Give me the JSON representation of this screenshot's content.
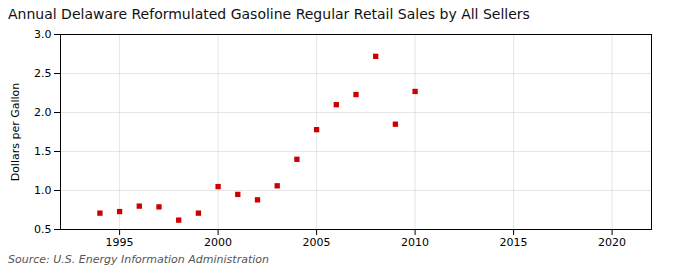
{
  "chart_data": {
    "type": "scatter",
    "title": "Annual Delaware Reformulated Gasoline Regular Retail Sales by All Sellers",
    "ylabel": "Dollars per Gallon",
    "source": "Source: U.S. Energy Information Administration",
    "x": [
      1994,
      1995,
      1996,
      1997,
      1998,
      1999,
      2000,
      2001,
      2002,
      2003,
      2004,
      2005,
      2006,
      2007,
      2008,
      2009,
      2010
    ],
    "values": [
      0.71,
      0.73,
      0.8,
      0.79,
      0.62,
      0.71,
      1.05,
      0.95,
      0.88,
      1.06,
      1.4,
      1.78,
      2.1,
      2.23,
      2.72,
      1.85,
      2.27
    ],
    "color": "#cc0000",
    "marker": "square",
    "xlim": [
      1992,
      2022
    ],
    "ylim": [
      0.5,
      3.0
    ],
    "xticks": [
      1995,
      2000,
      2005,
      2010,
      2015,
      2020
    ],
    "yticks": [
      0.5,
      {
        "value": 1,
        "label": "1.0"
      },
      1.5,
      {
        "value": 2,
        "label": "2.0"
      },
      2.5,
      {
        "value": 3,
        "label": "3.0"
      }
    ],
    "grid": true
  }
}
